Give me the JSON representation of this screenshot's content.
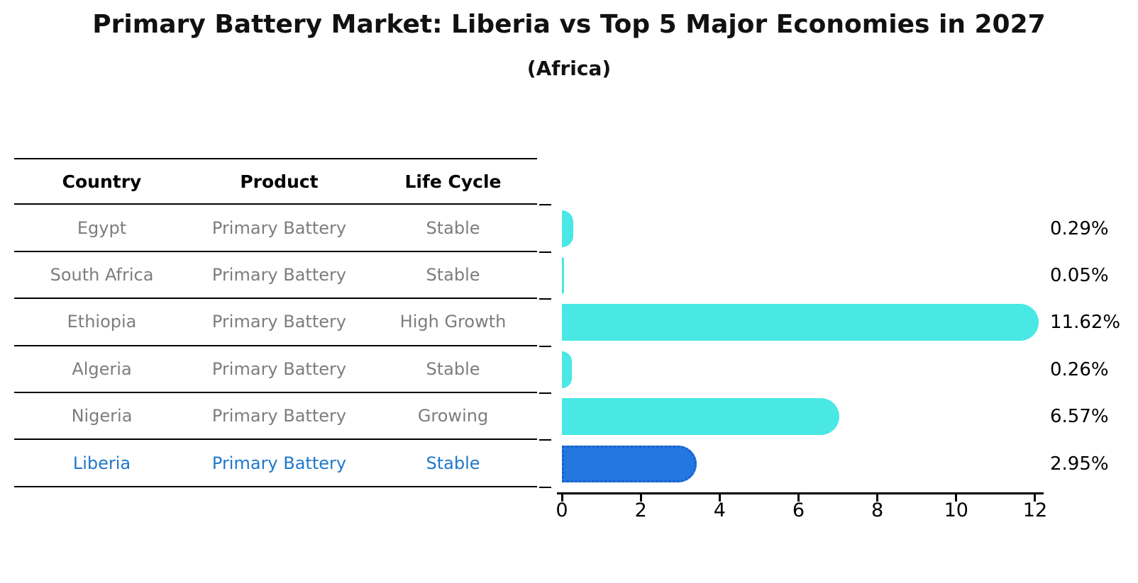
{
  "header": {
    "title": "Primary Battery Market: Liberia vs Top 5 Major Economies in 2027",
    "subtitle": "(Africa)"
  },
  "table": {
    "headers": [
      "Country",
      "Product",
      "Life Cycle"
    ],
    "rows": [
      {
        "country": "Egypt",
        "product": "Primary Battery",
        "life_cycle": "Stable",
        "highlight": false
      },
      {
        "country": "South Africa",
        "product": "Primary Battery",
        "life_cycle": "Stable",
        "highlight": false
      },
      {
        "country": "Ethiopia",
        "product": "Primary Battery",
        "life_cycle": "High Growth",
        "highlight": false
      },
      {
        "country": "Algeria",
        "product": "Primary Battery",
        "life_cycle": "Stable",
        "highlight": false
      },
      {
        "country": "Nigeria",
        "product": "Primary Battery",
        "life_cycle": "Growing",
        "highlight": false
      },
      {
        "country": "Liberia",
        "product": "Primary Battery",
        "life_cycle": "Stable",
        "highlight": true
      }
    ]
  },
  "chart_data": {
    "type": "bar",
    "orientation": "horizontal",
    "title": "Primary Battery Market: Liberia vs Top 5 Major Economies in 2027",
    "subtitle": "(Africa)",
    "categories": [
      "Egypt",
      "South Africa",
      "Ethiopia",
      "Algeria",
      "Nigeria",
      "Liberia"
    ],
    "values": [
      0.29,
      0.05,
      11.62,
      0.26,
      6.57,
      2.95
    ],
    "value_labels": [
      "0.29%",
      "0.05%",
      "11.62%",
      "0.26%",
      "6.57%",
      "2.95%"
    ],
    "xlabel": "",
    "ylabel": "",
    "xlim": [
      0,
      12
    ],
    "x_ticks": [
      0,
      2,
      4,
      6,
      8,
      10,
      12
    ],
    "grid": false,
    "legend": "none",
    "bar_color": "#49e8e4",
    "highlight_color": "#2377e0",
    "highlight_border_color": "#1c5fc8",
    "highlight_index": 5
  }
}
